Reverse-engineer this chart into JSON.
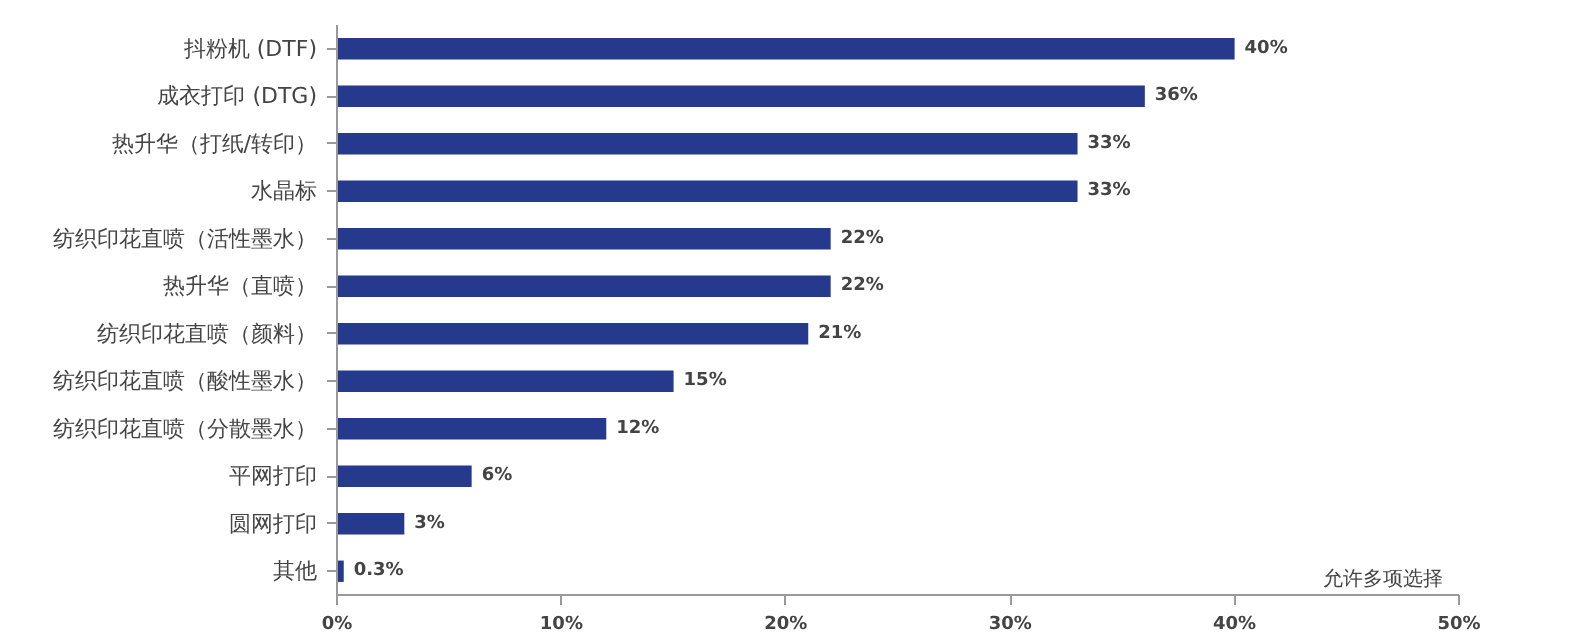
{
  "chart_data": {
    "type": "bar",
    "orientation": "horizontal",
    "color": "#253a8c",
    "categories": [
      "抖粉机 (DTF)",
      "成衣打印 (DTG)",
      "热升华（打纸/转印）",
      "水晶标",
      "纺织印花直喷（活性墨水）",
      "热升华（直喷）",
      "纺织印花直喷（颜料）",
      "纺织印花直喷（酸性墨水）",
      "纺织印花直喷（分散墨水）",
      "平网打印",
      "圆网打印",
      "其他"
    ],
    "values": [
      40,
      36,
      33,
      33,
      22,
      22,
      21,
      15,
      12,
      6,
      3,
      0.3
    ],
    "value_labels": [
      "40%",
      "36%",
      "33%",
      "33%",
      "22%",
      "22%",
      "21%",
      "15%",
      "12%",
      "6%",
      "3%",
      "0.3%"
    ],
    "xlim": [
      0,
      50
    ],
    "xticks": [
      {
        "value": 0,
        "label": "0%"
      },
      {
        "value": 10,
        "label": "10%"
      },
      {
        "value": 20,
        "label": "20%"
      },
      {
        "value": 30,
        "label": "30%"
      },
      {
        "value": 40,
        "label": "40%"
      },
      {
        "value": 50,
        "label": "50%"
      }
    ],
    "grid": false,
    "annotations": [
      "允许多项选择"
    ]
  }
}
